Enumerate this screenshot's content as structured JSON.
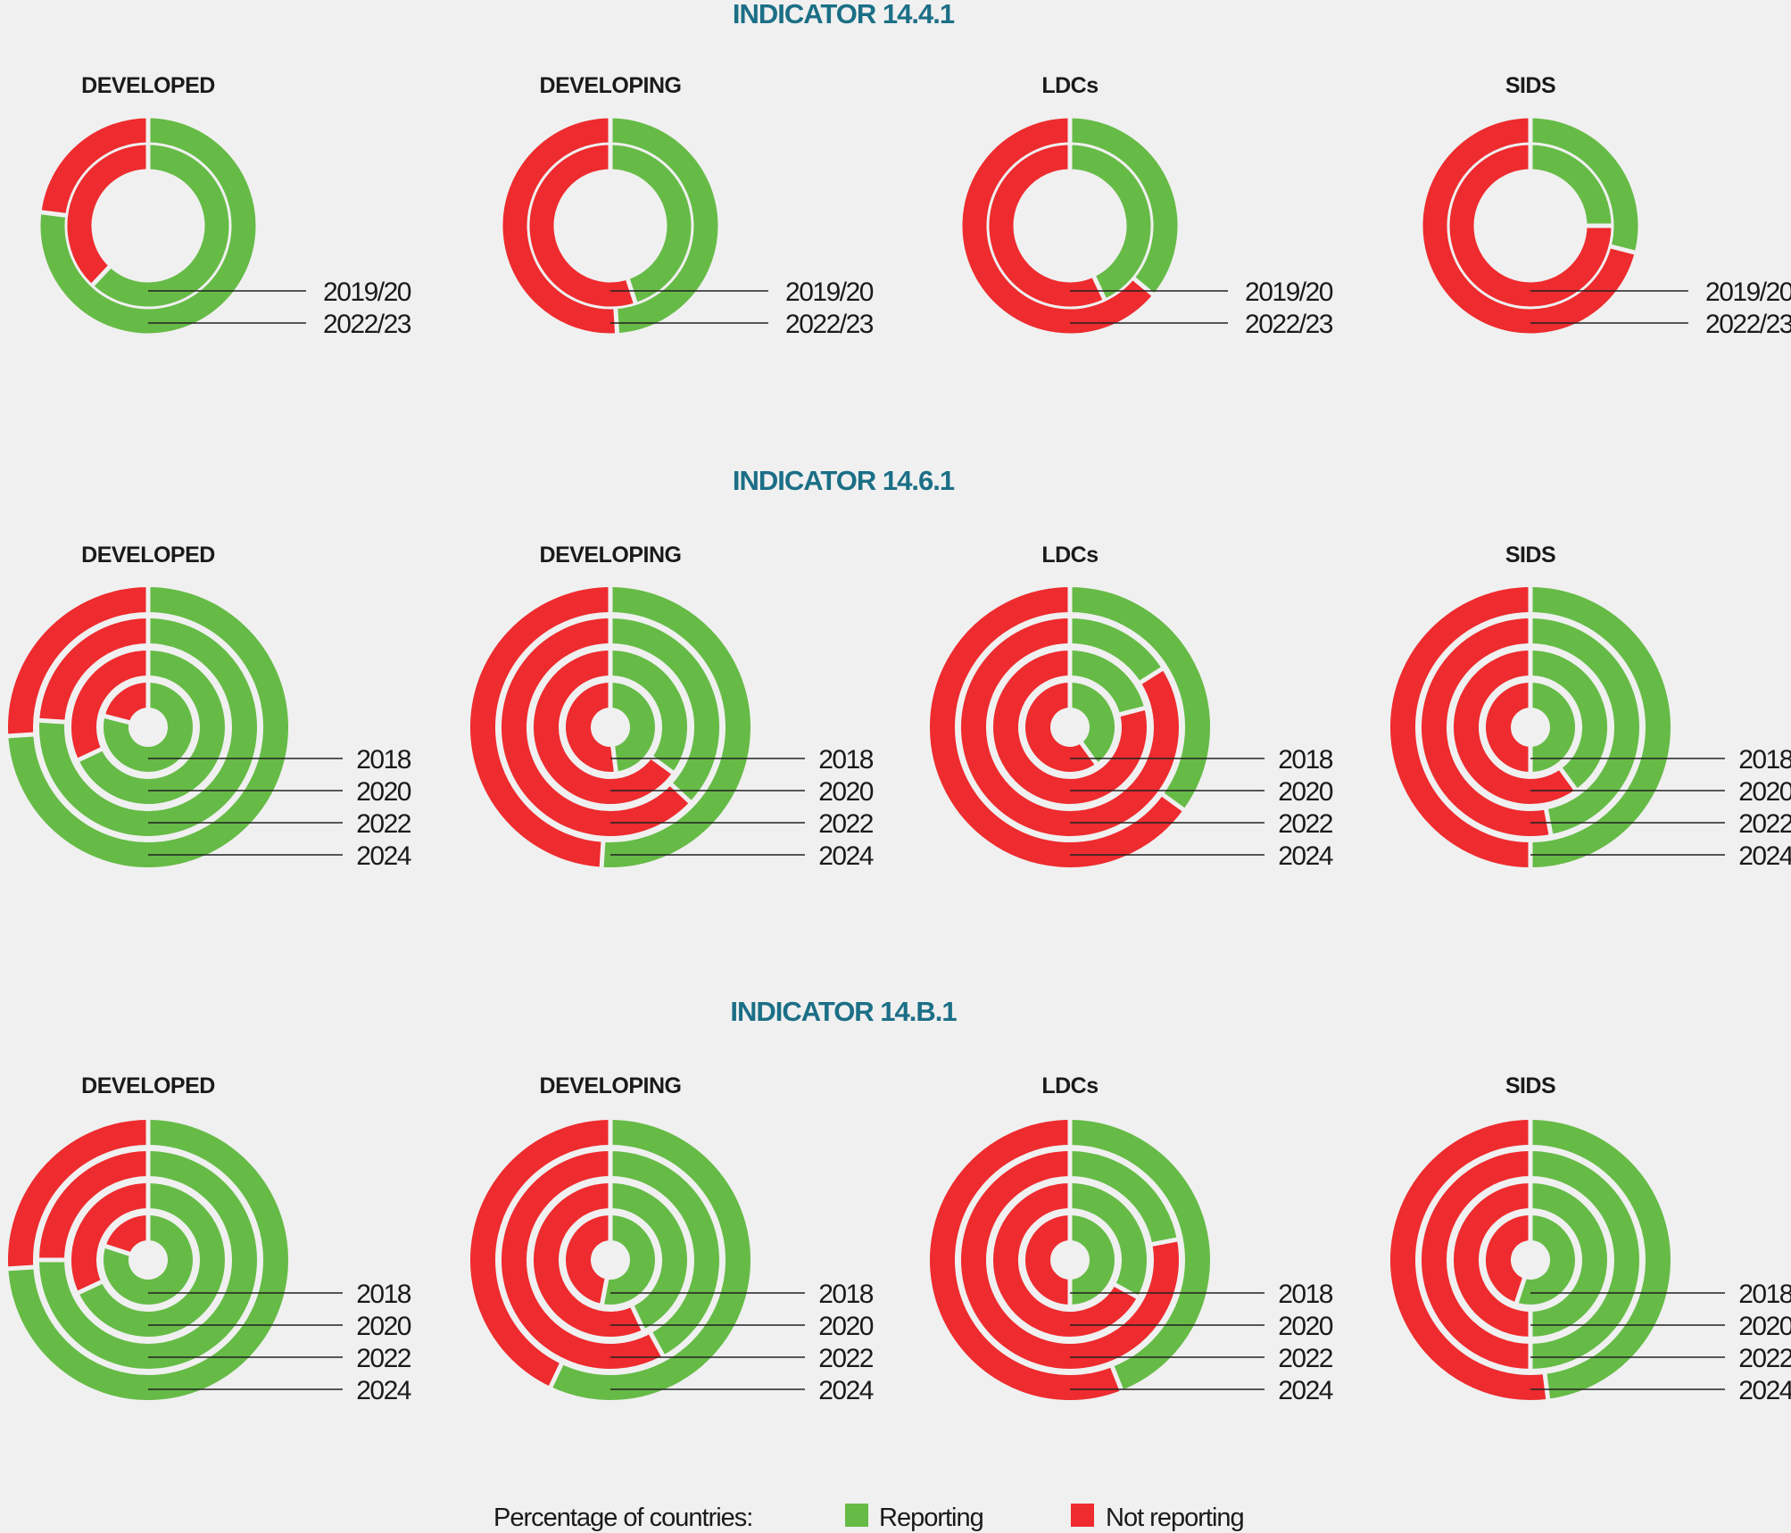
{
  "colors": {
    "reporting": "#66bb46",
    "not_reporting": "#ee2b2e",
    "background": "#f0f0f0",
    "title": "#1b6f86"
  },
  "chart_data": [
    {
      "type": "donut",
      "title": "INDICATOR 14.4.1",
      "rings": [
        "2019/20",
        "2022/23"
      ],
      "groups": [
        {
          "name": "DEVELOPED",
          "reporting_pct": [
            62,
            77
          ]
        },
        {
          "name": "DEVELOPING",
          "reporting_pct": [
            45,
            49
          ]
        },
        {
          "name": "LDCs",
          "reporting_pct": [
            43,
            36
          ]
        },
        {
          "name": "SIDS",
          "reporting_pct": [
            25,
            29
          ]
        }
      ]
    },
    {
      "type": "donut",
      "title": "INDICATOR 14.6.1",
      "rings": [
        "2018",
        "2020",
        "2022",
        "2024"
      ],
      "groups": [
        {
          "name": "DEVELOPED",
          "reporting_pct": [
            79,
            68,
            76,
            74
          ]
        },
        {
          "name": "DEVELOPING",
          "reporting_pct": [
            48,
            35,
            37,
            51
          ]
        },
        {
          "name": "LDCs",
          "reporting_pct": [
            40,
            21,
            16,
            35
          ]
        },
        {
          "name": "SIDS",
          "reporting_pct": [
            50,
            40,
            47,
            50
          ]
        }
      ]
    },
    {
      "type": "donut",
      "title": "INDICATOR 14.B.1",
      "rings": [
        "2018",
        "2020",
        "2022",
        "2024"
      ],
      "groups": [
        {
          "name": "DEVELOPED",
          "reporting_pct": [
            80,
            68,
            75,
            74
          ]
        },
        {
          "name": "DEVELOPING",
          "reporting_pct": [
            53,
            43,
            42,
            57
          ]
        },
        {
          "name": "LDCs",
          "reporting_pct": [
            50,
            33,
            22,
            44
          ]
        },
        {
          "name": "SIDS",
          "reporting_pct": [
            55,
            50,
            50,
            48
          ]
        }
      ]
    }
  ],
  "legend": {
    "title": "Percentage of countries:",
    "reporting": "Reporting",
    "not_reporting": "Not reporting"
  }
}
